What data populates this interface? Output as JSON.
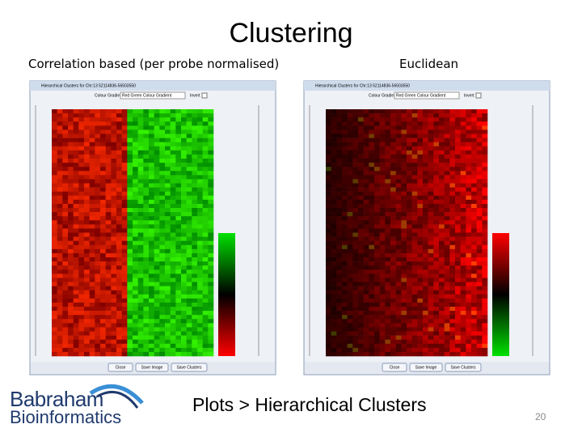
{
  "slide": {
    "title": "Clustering",
    "left_caption": "Correlation based (per probe normalised)",
    "right_caption": "Euclidean",
    "footer": "Plots > Hierarchical Clusters",
    "page_number": "20",
    "logo": {
      "line1": "Babraham",
      "line2": "Bioinformatics"
    }
  },
  "windows": [
    {
      "title": "Hierarchical Clusters for Chr:13 52114836-56503550",
      "gradient_label": "Colour Gradient",
      "gradient_choice": "Red Green Colour Gradient",
      "invert_label": "Invert",
      "buttons": [
        "Close",
        "Save Image",
        "Save Clusters"
      ]
    },
    {
      "title": "Hierarchical Clusters for Chr:13 52114836-56503550",
      "gradient_label": "Colour Gradient",
      "gradient_choice": "Red Green Colour Gradient",
      "invert_label": "Invert",
      "buttons": [
        "Close",
        "Save Image",
        "Save Clusters"
      ]
    }
  ]
}
